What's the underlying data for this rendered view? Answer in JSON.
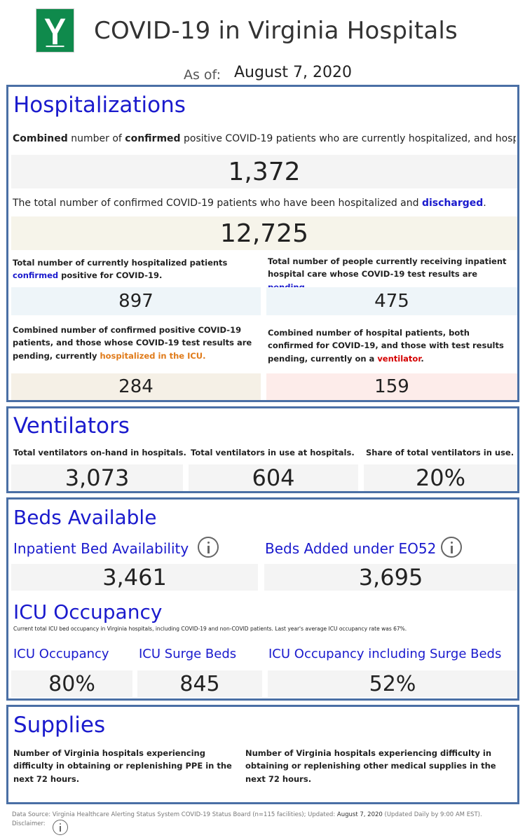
{
  "header": {
    "title": "COVID-19 in Virginia Hospitals",
    "asof_label": "As of:",
    "asof_date": "August 7, 2020"
  },
  "hospitalizations": {
    "heading": "Hospitalizations",
    "combined_desc_bold1": "Combined",
    "combined_desc_mid": " number of ",
    "combined_desc_bold2": "confirmed",
    "combined_desc_rest": " positive COVID-19 patients who are currently hospitalized, and hosp..",
    "combined_value": "1,372",
    "discharged_desc": "The total number of confirmed COVID-19 patients who have been hospitalized and ",
    "discharged_word": "discharged",
    "discharged_end": ".",
    "discharged_value": "12,725",
    "confirmed_desc_a": "Total number of currently hospitalized patients ",
    "confirmed_desc_word": "confirmed",
    "confirmed_desc_b": " positive for COVID-19.",
    "confirmed_value": "897",
    "pending_desc_a": "Total number of people currently receiving inpatient hospital care whose COVID-19 test results are ",
    "pending_desc_word": "pending",
    "pending_desc_b": ".",
    "pending_value": "475",
    "icu_desc_a": "Combined number of confirmed positive COVID-19 patients, and those whose COVID-19 test results are pending, currently ",
    "icu_desc_word": "hospitalized in the ICU.",
    "icu_value": "284",
    "vent_desc_a": "Combined number of hospital patients, both confirmed for COVID-19, and those with test results pending, currently on a ",
    "vent_desc_word": "ventilator",
    "vent_desc_b": ".",
    "vent_value": "159"
  },
  "ventilators": {
    "heading": "Ventilators",
    "onhand_label": "Total ventilators on-hand in hospitals.",
    "onhand_value": "3,073",
    "inuse_label": "Total ventilators in use at hospitals.",
    "inuse_value": "604",
    "share_label": "Share of total ventilators in use.",
    "share_value": "20%"
  },
  "beds": {
    "heading": "Beds Available",
    "inpatient_label": "Inpatient Bed Availability",
    "inpatient_value": "3,461",
    "eo52_label": "Beds Added under EO52",
    "eo52_value": "3,695",
    "icu_heading": "ICU Occupancy",
    "icu_desc": "Current total ICU bed occupancy in Virginia hospitals, including COVID-19 and non-COVID patients. Last year's average ICU occupancy rate was 67%.",
    "icu_occ_label": "ICU Occupancy",
    "icu_occ_value": "80%",
    "surge_label": "ICU Surge Beds",
    "surge_value": "845",
    "incl_surge_label": "ICU Occupancy including Surge Beds",
    "incl_surge_value": "52%"
  },
  "supplies": {
    "heading": "Supplies",
    "ppe_desc": "Number of Virginia hospitals experiencing difficulty in obtaining or replenishing PPE in the next 72 hours.",
    "other_desc": "Number of Virginia hospitals experiencing difficulty in obtaining or replenishing other medical supplies in the next 72 hours."
  },
  "footer": {
    "source_a": "Data Source: Virginia Healthcare Alerting Status System COVID-19 Status Board (n=115 facilities); Updated: ",
    "source_date": "August 7, 2020",
    "source_b": " (Updated Daily by 9:00 AM EST).",
    "disclaimer": "Disclaimer:"
  },
  "icons": {
    "logo": "vhha-logo-icon",
    "info": "info-icon"
  },
  "colors": {
    "heading_blue": "#1a1acd",
    "panel_border": "#4a6fa5",
    "logo_green": "#0f8a4c",
    "icu_orange": "#e07b1a",
    "vent_red": "#d40000"
  }
}
